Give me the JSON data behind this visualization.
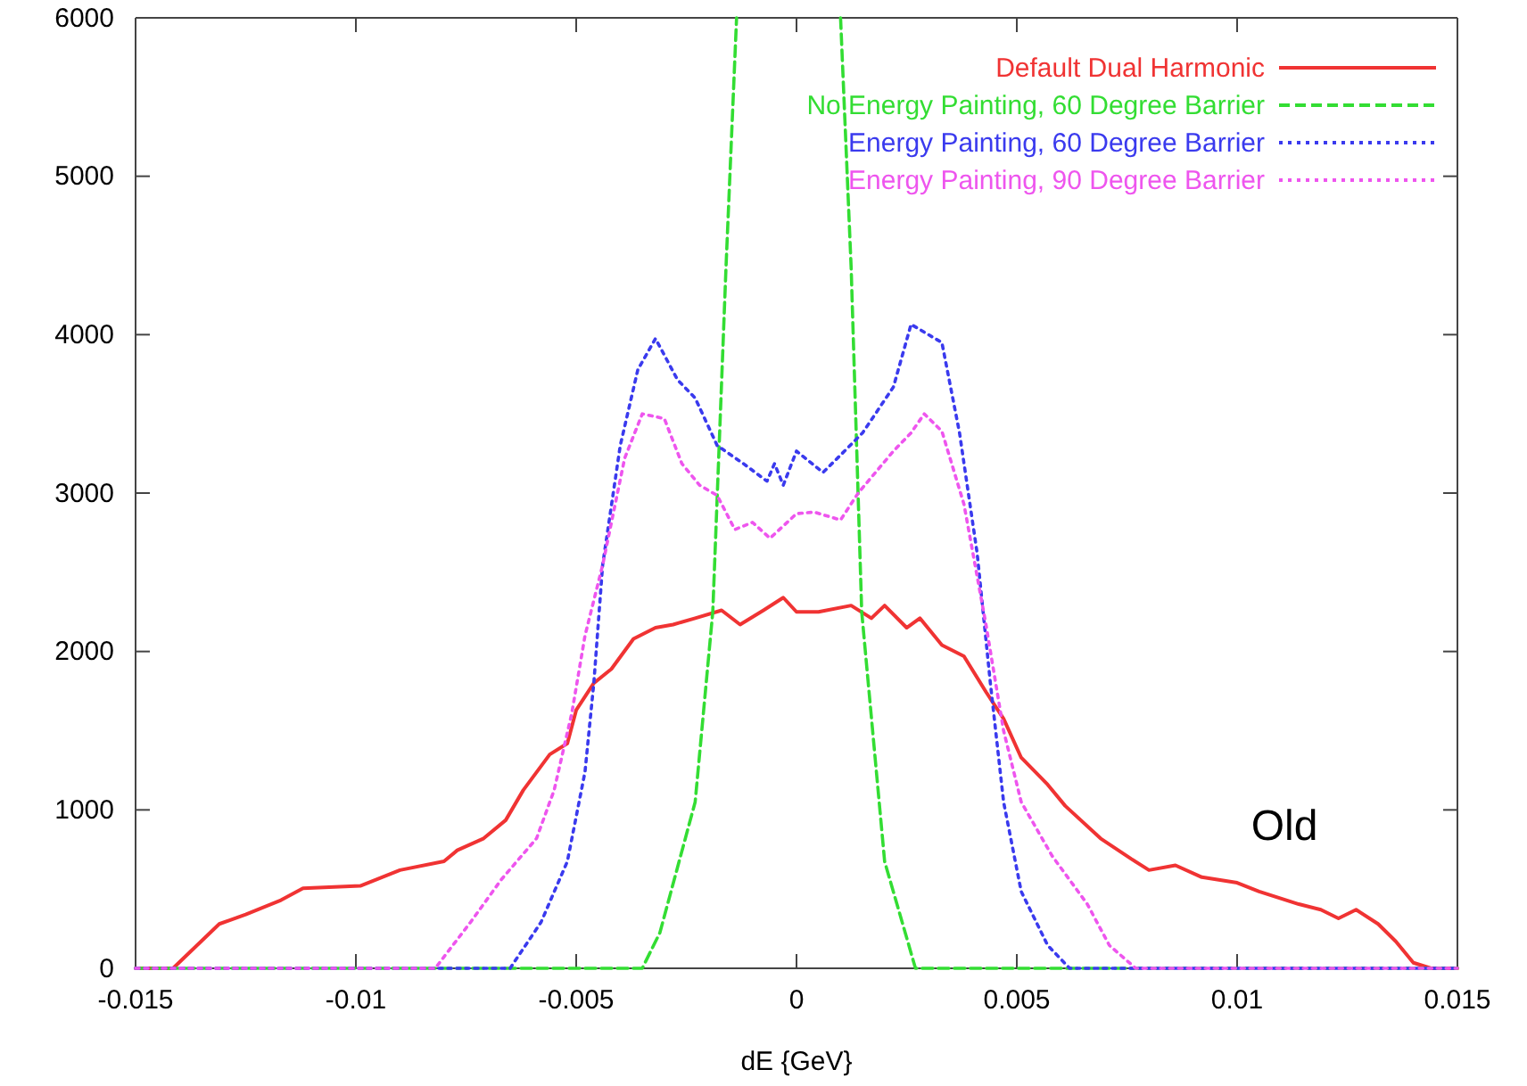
{
  "chart_data": {
    "type": "line",
    "xlabel": "dE {GeV}",
    "xlim": [
      -0.015,
      0.015
    ],
    "ylim": [
      0,
      6000
    ],
    "xticks": [
      -0.015,
      -0.01,
      -0.005,
      0,
      0.005,
      0.01,
      0.015
    ],
    "yticks": [
      0,
      1000,
      2000,
      3000,
      4000,
      5000,
      6000
    ],
    "grid": false,
    "legend": "top right",
    "marker": "none",
    "annotations": [
      "Old"
    ],
    "series": [
      {
        "name": "Default Dual Harmonic",
        "color": "#f03333",
        "line_style": "solid",
        "x": [
          -0.015,
          -0.01415,
          -0.0131,
          -0.0125,
          -0.0117,
          -0.0112,
          -0.0099,
          -0.009,
          -0.008,
          -0.0077,
          -0.0071,
          -0.0066,
          -0.0062,
          -0.0056,
          -0.0052,
          -0.005,
          -0.0046,
          -0.0042,
          -0.0037,
          -0.0032,
          -0.0028,
          -0.0023,
          -0.0017,
          -0.00128,
          -0.00075,
          -0.0003,
          0,
          0.0005,
          0.00124,
          0.0017,
          0.002,
          0.0025,
          0.0028,
          0.0033,
          0.0038,
          0.0043,
          0.0047,
          0.0051,
          0.0057,
          0.0061,
          0.0069,
          0.0076,
          0.008,
          0.0086,
          0.0092,
          0.01,
          0.0105,
          0.0114,
          0.0119,
          0.0123,
          0.0127,
          0.0132,
          0.0136,
          0.014,
          0.0144,
          0.015
        ],
        "values": [
          0,
          0,
          280,
          340,
          430,
          505,
          520,
          620,
          675,
          745,
          820,
          935,
          1125,
          1350,
          1420,
          1630,
          1800,
          1890,
          2080,
          2150,
          2170,
          2210,
          2260,
          2170,
          2260,
          2340,
          2250,
          2250,
          2290,
          2210,
          2290,
          2150,
          2210,
          2040,
          1970,
          1745,
          1575,
          1330,
          1160,
          1025,
          820,
          690,
          620,
          650,
          575,
          540,
          485,
          405,
          370,
          315,
          370,
          280,
          170,
          35,
          0,
          0
        ]
      },
      {
        "name": "No Energy Painting, 60 Degree Barrier",
        "color": "#33dd33",
        "line_style": "dashed",
        "x": [
          -0.015,
          -0.0035,
          -0.0031,
          -0.0023,
          -0.0019,
          -0.0016,
          -0.00136,
          0,
          0.001,
          0.00124,
          0.00148,
          0.002,
          0.0027,
          0.015
        ],
        "values": [
          0,
          0,
          225,
          1050,
          2250,
          4425,
          6000,
          null,
          6000,
          4425,
          2250,
          675,
          0,
          0
        ]
      },
      {
        "name": "Energy Painting, 60 Degree Barrier",
        "color": "#3a3aee",
        "line_style": "dotted",
        "x": [
          -0.015,
          -0.0065,
          -0.0058,
          -0.0052,
          -0.0048,
          -0.0046,
          -0.0044,
          -0.004,
          -0.0036,
          -0.0032,
          -0.0027,
          -0.0023,
          -0.0018,
          -0.0012,
          -0.00067,
          -0.0005,
          -0.0003,
          0,
          0.0006,
          0.001,
          0.0015,
          0.0022,
          0.0026,
          0.0033,
          0.0037,
          0.0041,
          0.0044,
          0.0047,
          0.0051,
          0.0057,
          0.0062,
          0.015
        ],
        "values": [
          0,
          0,
          290,
          675,
          1240,
          1800,
          2545,
          3300,
          3780,
          3975,
          3715,
          3600,
          3300,
          3185,
          3075,
          3185,
          3050,
          3265,
          3130,
          3240,
          3380,
          3670,
          4065,
          3950,
          3380,
          2620,
          1800,
          1050,
          485,
          145,
          0,
          0
        ]
      },
      {
        "name": "Energy Painting, 90 Degree Barrier",
        "color": "#ee55ee",
        "line_style": "dotted",
        "x": [
          -0.015,
          -0.0082,
          -0.0074,
          -0.0067,
          -0.0059,
          -0.0055,
          -0.0051,
          -0.0048,
          -0.0044,
          -0.0039,
          -0.0035,
          -0.003,
          -0.0026,
          -0.0022,
          -0.0018,
          -0.0014,
          -0.001,
          -0.0006,
          0,
          0.0004,
          0.001,
          0.0014,
          0.0022,
          0.0026,
          0.0029,
          0.0033,
          0.0038,
          0.0043,
          0.0047,
          0.0051,
          0.0058,
          0.0066,
          0.0071,
          0.0077,
          0.015
        ],
        "values": [
          0,
          0,
          290,
          560,
          820,
          1125,
          1610,
          2100,
          2545,
          3220,
          3500,
          3470,
          3185,
          3050,
          2985,
          2770,
          2815,
          2715,
          2870,
          2880,
          2830,
          3000,
          3265,
          3380,
          3500,
          3390,
          2930,
          2170,
          1500,
          1050,
          710,
          405,
          145,
          0,
          0
        ]
      }
    ]
  }
}
